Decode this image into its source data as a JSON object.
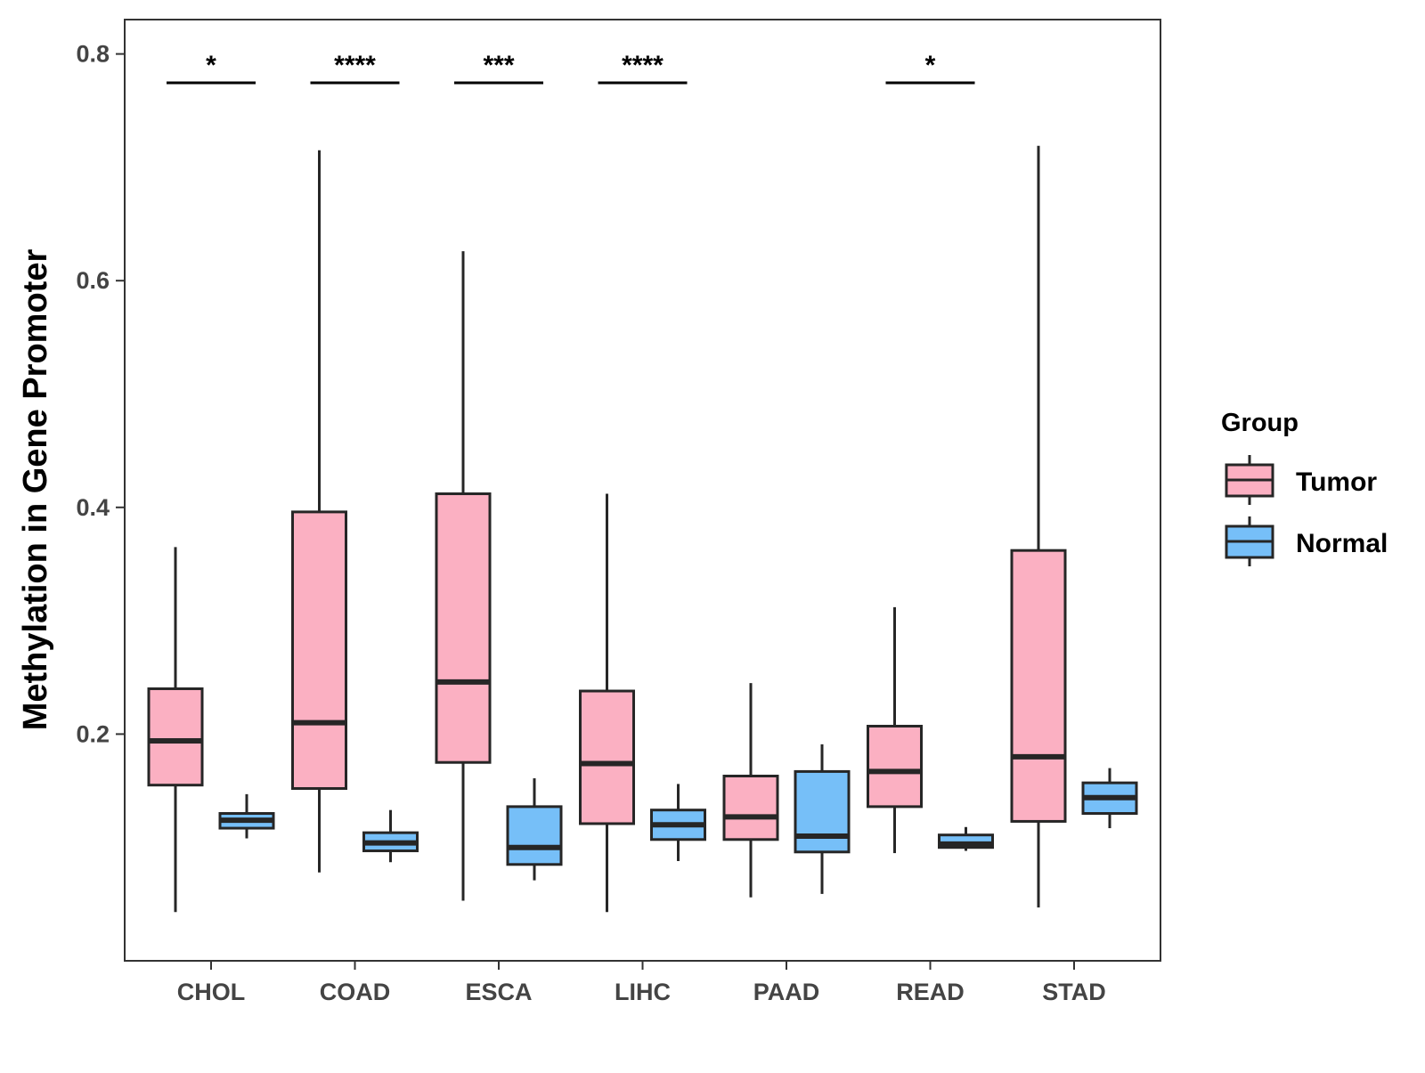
{
  "chart_data": {
    "type": "boxplot",
    "title": "",
    "xlabel": "",
    "ylabel": "Methylation in Gene Promoter",
    "ylim": [
      0.0,
      0.83
    ],
    "yticks": [
      0.2,
      0.4,
      0.6,
      0.8
    ],
    "ytick_labels": [
      "0.2",
      "0.4",
      "0.6",
      "0.8"
    ],
    "categories": [
      "CHOL",
      "COAD",
      "ESCA",
      "LIHC",
      "PAAD",
      "READ",
      "STAD"
    ],
    "grid": false,
    "legend": {
      "title": "Group",
      "position": "right",
      "entries": [
        {
          "name": "Tumor",
          "color": "#FBB0C2"
        },
        {
          "name": "Normal",
          "color": "#76BFF8"
        }
      ]
    },
    "series": [
      {
        "name": "Tumor",
        "color": "#FBB0C2",
        "boxes": [
          {
            "category": "CHOL",
            "min": 0.043,
            "q1": 0.155,
            "median": 0.194,
            "q3": 0.24,
            "max": 0.365
          },
          {
            "category": "COAD",
            "min": 0.078,
            "q1": 0.152,
            "median": 0.21,
            "q3": 0.396,
            "max": 0.715
          },
          {
            "category": "ESCA",
            "min": 0.053,
            "q1": 0.175,
            "median": 0.246,
            "q3": 0.412,
            "max": 0.626
          },
          {
            "category": "LIHC",
            "min": 0.043,
            "q1": 0.121,
            "median": 0.174,
            "q3": 0.238,
            "max": 0.412
          },
          {
            "category": "PAAD",
            "min": 0.056,
            "q1": 0.107,
            "median": 0.127,
            "q3": 0.163,
            "max": 0.245
          },
          {
            "category": "READ",
            "min": 0.095,
            "q1": 0.136,
            "median": 0.167,
            "q3": 0.207,
            "max": 0.312
          },
          {
            "category": "STAD",
            "min": 0.047,
            "q1": 0.123,
            "median": 0.18,
            "q3": 0.362,
            "max": 0.719
          }
        ]
      },
      {
        "name": "Normal",
        "color": "#76BFF8",
        "boxes": [
          {
            "category": "CHOL",
            "min": 0.108,
            "q1": 0.117,
            "median": 0.124,
            "q3": 0.13,
            "max": 0.147
          },
          {
            "category": "COAD",
            "min": 0.087,
            "q1": 0.097,
            "median": 0.104,
            "q3": 0.113,
            "max": 0.133
          },
          {
            "category": "ESCA",
            "min": 0.071,
            "q1": 0.085,
            "median": 0.1,
            "q3": 0.136,
            "max": 0.161
          },
          {
            "category": "LIHC",
            "min": 0.088,
            "q1": 0.107,
            "median": 0.12,
            "q3": 0.133,
            "max": 0.156
          },
          {
            "category": "PAAD",
            "min": 0.059,
            "q1": 0.096,
            "median": 0.11,
            "q3": 0.167,
            "max": 0.191
          },
          {
            "category": "READ",
            "min": 0.097,
            "q1": 0.1,
            "median": 0.103,
            "q3": 0.111,
            "max": 0.118
          },
          {
            "category": "STAD",
            "min": 0.117,
            "q1": 0.13,
            "median": 0.144,
            "q3": 0.157,
            "max": 0.17
          }
        ]
      }
    ],
    "annotations": [
      {
        "category": "CHOL",
        "label": "*"
      },
      {
        "category": "COAD",
        "label": "****"
      },
      {
        "category": "ESCA",
        "label": "***"
      },
      {
        "category": "LIHC",
        "label": "****"
      },
      {
        "category": "READ",
        "label": "*"
      }
    ]
  }
}
